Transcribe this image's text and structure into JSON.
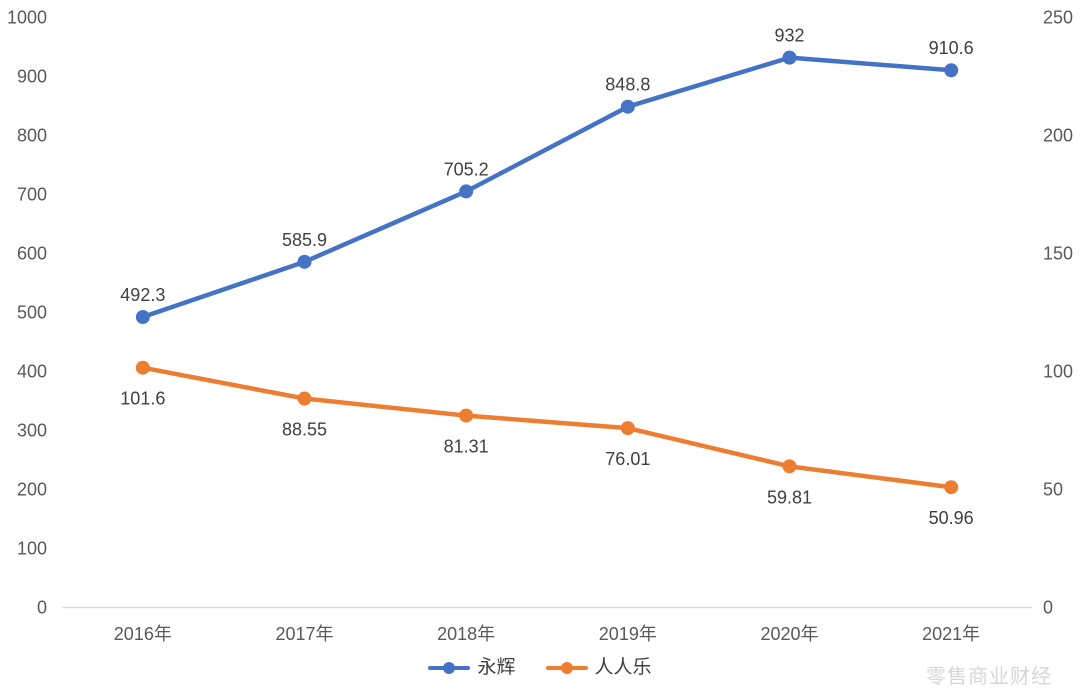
{
  "chart_data": {
    "type": "line",
    "title": "",
    "x_categories": [
      "2016年",
      "2017年",
      "2018年",
      "2019年",
      "2020年",
      "2021年"
    ],
    "series": [
      {
        "name": "永辉",
        "axis": "left",
        "color": "#4472C4",
        "values": [
          492.3,
          585.9,
          705.2,
          848.8,
          932,
          910.6
        ],
        "labels": [
          "492.3",
          "585.9",
          "705.2",
          "848.8",
          "932",
          "910.6"
        ],
        "label_position": "above"
      },
      {
        "name": "人人乐",
        "axis": "right",
        "color": "#ED7D31",
        "values": [
          101.6,
          88.55,
          81.31,
          76.01,
          59.81,
          50.96
        ],
        "labels": [
          "101.6",
          "88.55",
          "81.31",
          "76.01",
          "59.81",
          "50.96"
        ],
        "label_position": "below"
      }
    ],
    "left_axis": {
      "min": 0,
      "max": 1000,
      "step": 100,
      "ticks": [
        "0",
        "100",
        "200",
        "300",
        "400",
        "500",
        "600",
        "700",
        "800",
        "900",
        "1000"
      ]
    },
    "right_axis": {
      "min": 0,
      "max": 250,
      "step": 50,
      "ticks": [
        "0",
        "50",
        "100",
        "150",
        "200",
        "250"
      ]
    },
    "grid": false,
    "legend_position": "bottom",
    "axis_line_color": "#d9d9d9",
    "tick_label_color": "#595959",
    "data_label_color": "#404040"
  },
  "legend": {
    "items": [
      {
        "label": "永辉",
        "color": "#4472C4"
      },
      {
        "label": "人人乐",
        "color": "#ED7D31"
      }
    ]
  },
  "watermark": "零售商业财经"
}
